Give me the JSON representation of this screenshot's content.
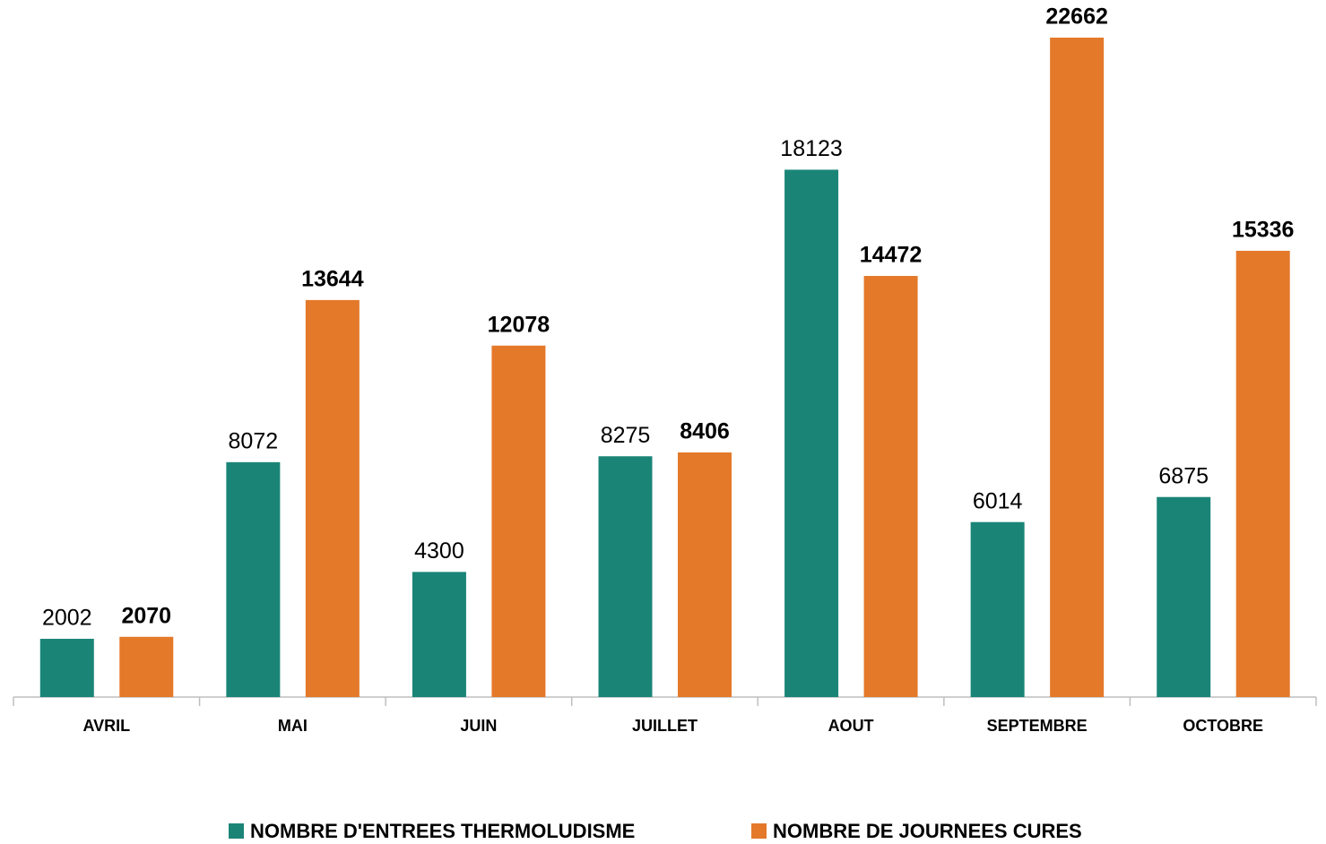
{
  "chart_data": {
    "type": "bar",
    "categories": [
      "AVRIL",
      "MAI",
      "JUIN",
      "JUILLET",
      "AOUT",
      "SEPTEMBRE",
      "OCTOBRE"
    ],
    "series": [
      {
        "name": "NOMBRE D'ENTREES THERMOLUDISME",
        "color": "#1a8577",
        "values": [
          2002,
          8072,
          4300,
          8275,
          18123,
          6014,
          6875
        ]
      },
      {
        "name": "NOMBRE DE JOURNEES CURES",
        "color": "#e4792a",
        "values": [
          2070,
          13644,
          12078,
          8406,
          14472,
          22662,
          15336
        ]
      }
    ]
  }
}
